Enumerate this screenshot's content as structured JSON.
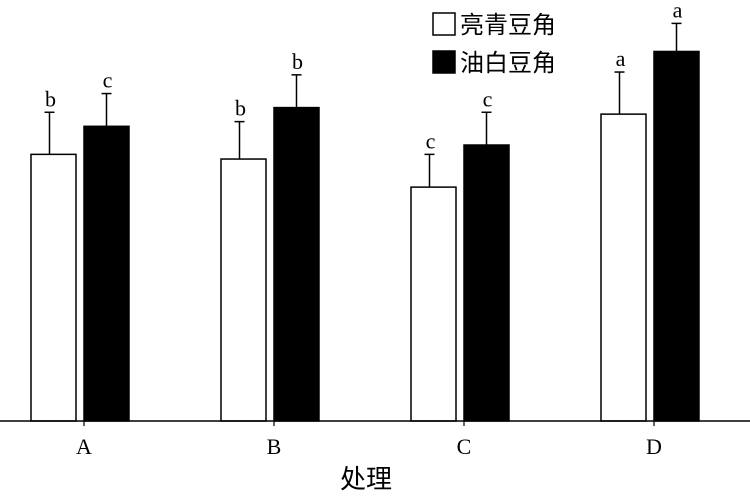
{
  "chart_data": {
    "type": "bar",
    "categories": [
      "A",
      "B",
      "C",
      "D"
    ],
    "series": [
      {
        "name": "亮青豆角",
        "color": "#ffffff",
        "values": [
          28.5,
          28.0,
          25.0,
          32.8
        ],
        "errors": [
          4.5,
          4.0,
          3.5,
          4.5
        ],
        "labels": [
          "b",
          "b",
          "c",
          "a"
        ]
      },
      {
        "name": "油白豆角",
        "color": "#000000",
        "values": [
          31.5,
          33.5,
          29.5,
          39.5
        ],
        "errors": [
          3.5,
          3.5,
          3.5,
          3.0
        ],
        "labels": [
          "c",
          "b",
          "c",
          "a"
        ]
      }
    ],
    "xlabel": "处理",
    "ylabel": "",
    "ylim": [
      0,
      45
    ],
    "grid": false,
    "legend": "top-right"
  }
}
